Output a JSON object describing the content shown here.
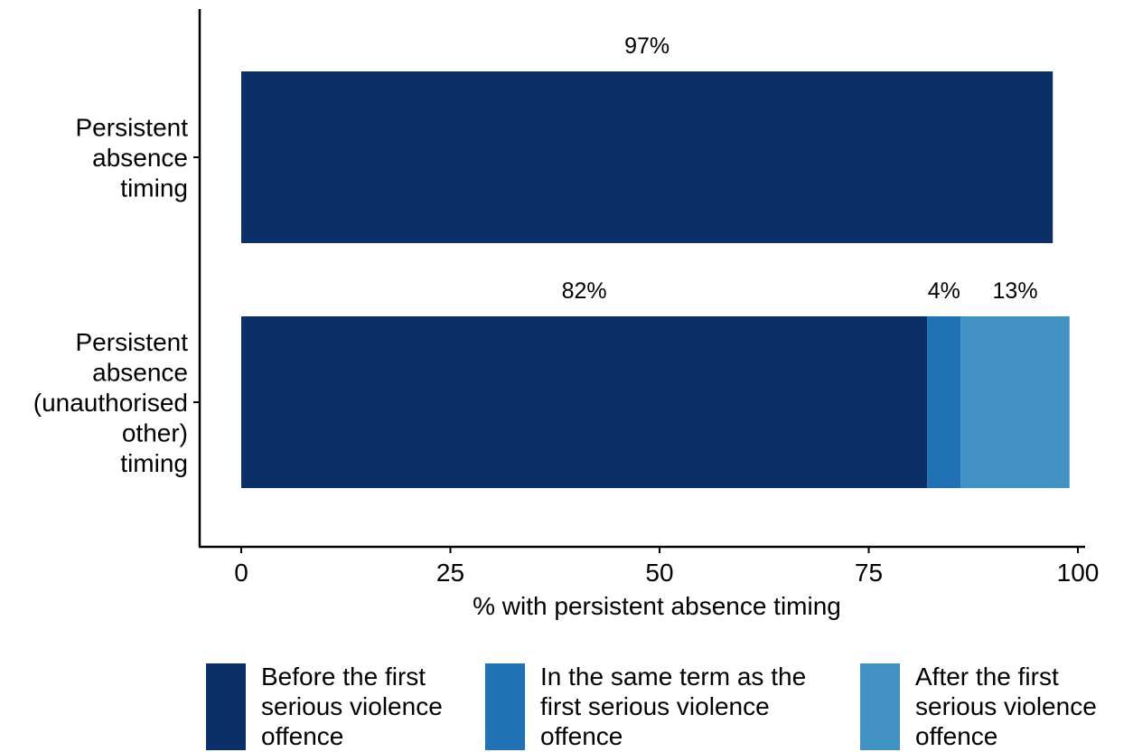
{
  "chart_data": {
    "type": "bar",
    "orientation": "horizontal",
    "stacked": true,
    "title": "",
    "xlabel": "% with persistent absence timing",
    "ylabel": "",
    "xlim": [
      0,
      100
    ],
    "x_ticks": [
      0,
      25,
      50,
      75,
      100
    ],
    "grid": false,
    "legend_position": "bottom",
    "categories": [
      [
        "Persistent",
        "absence",
        "timing"
      ],
      [
        "Persistent",
        "absence",
        "(unauthorised",
        "other)",
        "timing"
      ]
    ],
    "series": [
      {
        "name": [
          "Before the first",
          "serious violence",
          "offence"
        ],
        "color": "#0b3068",
        "values": [
          97,
          82
        ],
        "labels": [
          "97%",
          "82%"
        ]
      },
      {
        "name": [
          "In the same term as the",
          "first serious violence",
          "offence"
        ],
        "color": "#2171b5",
        "values": [
          0,
          4
        ],
        "labels": [
          "",
          "4%"
        ]
      },
      {
        "name": [
          "After the first",
          "serious violence",
          "offence"
        ],
        "color": "#4292c6",
        "values": [
          0,
          13
        ],
        "labels": [
          "",
          "13%"
        ]
      }
    ]
  }
}
